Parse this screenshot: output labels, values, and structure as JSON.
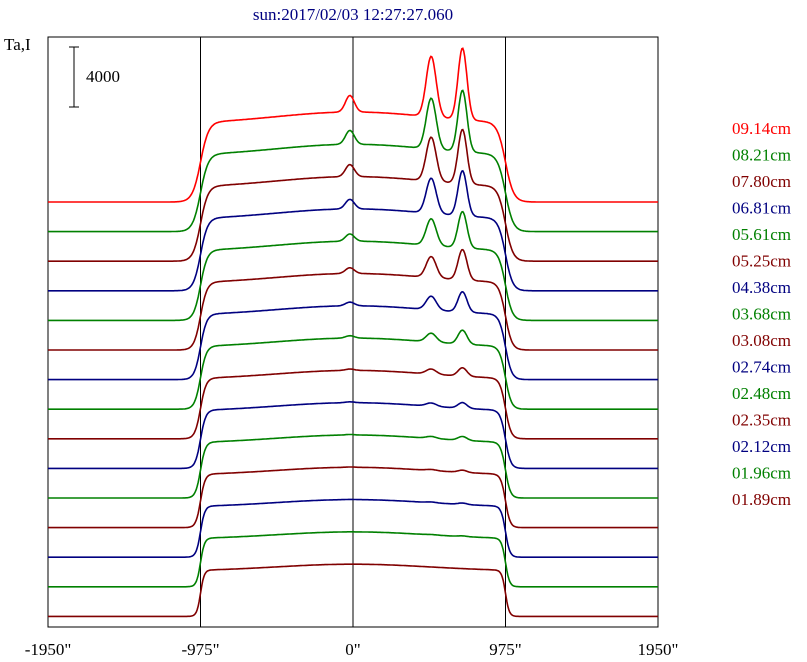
{
  "chart_data": {
    "type": "line",
    "title": "sun:2017/02/03 12:27:27.060",
    "ylabel": "Ta,I",
    "scale_bar_label": "4000",
    "scale_bar_value": 4000,
    "xlim": [
      -1950,
      1950
    ],
    "x_ticks": [
      {
        "value": -1950,
        "label": "-1950\""
      },
      {
        "value": -975,
        "label": "-975\""
      },
      {
        "value": 0,
        "label": "0\""
      },
      {
        "value": 975,
        "label": "975\""
      },
      {
        "value": 1950,
        "label": "1950\""
      }
    ],
    "vertical_lines": [
      -975,
      0,
      975
    ],
    "legend_position": "right",
    "grid": false,
    "series_note": "profiles stacked top to bottom, each offset vertically",
    "series": [
      {
        "name": "09.14cm",
        "color": "#ff0000",
        "limb_px": 975,
        "peak1": 1.1,
        "peak2": 1.3
      },
      {
        "name": "08.21cm",
        "color": "#008000",
        "limb_px": 975,
        "peak1": 0.95,
        "peak2": 1.15
      },
      {
        "name": "07.80cm",
        "color": "#800000",
        "limb_px": 975,
        "peak1": 0.85,
        "peak2": 1.05
      },
      {
        "name": "06.81cm",
        "color": "#000080",
        "limb_px": 975,
        "peak1": 0.7,
        "peak2": 0.9
      },
      {
        "name": "05.61cm",
        "color": "#008000",
        "limb_px": 975,
        "peak1": 0.55,
        "peak2": 0.75
      },
      {
        "name": "05.25cm",
        "color": "#800000",
        "limb_px": 975,
        "peak1": 0.45,
        "peak2": 0.65
      },
      {
        "name": "04.38cm",
        "color": "#000080",
        "limb_px": 975,
        "peak1": 0.3,
        "peak2": 0.45
      },
      {
        "name": "03.68cm",
        "color": "#008000",
        "limb_px": 975,
        "peak1": 0.2,
        "peak2": 0.32
      },
      {
        "name": "03.08cm",
        "color": "#800000",
        "limb_px": 975,
        "peak1": 0.12,
        "peak2": 0.2
      },
      {
        "name": "02.74cm",
        "color": "#000080",
        "limb_px": 975,
        "peak1": 0.08,
        "peak2": 0.14
      },
      {
        "name": "02.48cm",
        "color": "#008000",
        "limb_px": 975,
        "peak1": 0.05,
        "peak2": 0.1
      },
      {
        "name": "02.35cm",
        "color": "#800000",
        "limb_px": 975,
        "peak1": 0.03,
        "peak2": 0.06
      },
      {
        "name": "02.12cm",
        "color": "#000080",
        "limb_px": 975,
        "peak1": 0.02,
        "peak2": 0.04
      },
      {
        "name": "01.96cm",
        "color": "#008000",
        "limb_px": 975,
        "peak1": 0.01,
        "peak2": 0.02
      },
      {
        "name": "01.89cm",
        "color": "#800000",
        "limb_px": 975,
        "peak1": 0.0,
        "peak2": 0.0
      }
    ]
  }
}
